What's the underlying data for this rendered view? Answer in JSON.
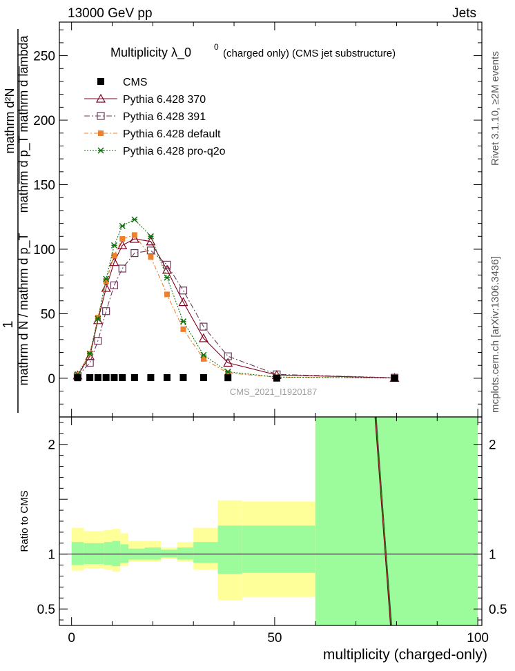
{
  "header": {
    "left": "13000 GeV pp",
    "right": "Jets"
  },
  "side_labels": {
    "rivet": "Rivet 3.1.10, ≥2M events",
    "mcplots": "mcplots.cern.ch [arXiv:1306.3436]"
  },
  "main_ylabel": {
    "numerator": "1",
    "den_upper": "mathrm d²N",
    "den_lower": "mathrm d p_T mathrm d lambda",
    "denom": "mathrm d N / mathrm d p_T"
  },
  "ratio_ylabel": "Ratio to CMS",
  "watermark": "CMS_2021_I1920187",
  "title_main": "Multiplicity  λ_0",
  "title_sup": "0",
  "title_sub": "(charged only) (CMS jet substructure)",
  "xlabel": "multiplicity (charged-only)",
  "colors": {
    "cms": "#000000",
    "p370": "#800020",
    "p391": "#6b3a5a",
    "pdef": "#f07f2a",
    "pq2o": "#107010",
    "band_inner": "#9cfc9c",
    "band_outer": "#ffff99"
  },
  "chart_data": [
    {
      "type": "line",
      "name": "main",
      "xlim": [
        -3,
        101
      ],
      "ylim": [
        -30,
        276
      ],
      "xticks": [
        0,
        50,
        100
      ],
      "yticks": [
        0,
        50,
        100,
        150,
        200,
        250
      ],
      "cms": {
        "name": "CMS",
        "x": [
          1.5,
          4.5,
          6.5,
          8.5,
          10.5,
          12.5,
          15.5,
          19.5,
          23.5,
          27.5,
          32.5,
          38.5,
          50.5,
          79.5
        ],
        "y": [
          0.4,
          0.5,
          0.5,
          0.5,
          0.5,
          0.5,
          0.5,
          0.5,
          0.5,
          0.5,
          0.5,
          0.4,
          0.1,
          0.05
        ]
      },
      "series": [
        {
          "name": "Pythia 6.428 370",
          "color_key": "p370",
          "marker": "triangle",
          "dash": "",
          "x": [
            1.5,
            4.5,
            6.5,
            8.5,
            10.5,
            12.5,
            15.5,
            19.5,
            23.5,
            27.5,
            32.5,
            38.5,
            50.5,
            79.5
          ],
          "y": [
            2.2,
            17,
            45,
            70,
            90,
            103,
            108,
            106,
            84,
            59,
            31,
            12,
            2.5,
            0.3
          ]
        },
        {
          "name": "Pythia 6.428 391",
          "color_key": "p391",
          "marker": "square_open",
          "dash": "8,3,2,3",
          "x": [
            1.5,
            4.5,
            6.5,
            8.5,
            10.5,
            12.5,
            15.5,
            19.5,
            23.5,
            27.5,
            32.5,
            38.5,
            50.5,
            79.5
          ],
          "y": [
            1.5,
            12,
            29,
            52,
            72,
            85,
            97,
            99,
            88,
            68,
            40,
            17,
            3,
            0.4
          ]
        },
        {
          "name": "Pythia 6.428 default",
          "color_key": "pdef",
          "marker": "square_filled",
          "dash": "6,3,2,3",
          "x": [
            1.5,
            4.5,
            6.5,
            8.5,
            10.5,
            12.5,
            15.5,
            19.5,
            23.5,
            27.5,
            32.5,
            38.5,
            50.5,
            79.5
          ],
          "y": [
            2.8,
            19,
            47,
            75,
            95,
            108,
            111,
            94,
            65,
            38,
            15,
            4,
            0.8,
            0.1
          ]
        },
        {
          "name": "Pythia 6.428 pro-q2o",
          "color_key": "pq2o",
          "marker": "star",
          "dash": "2,2",
          "x": [
            1.5,
            4.5,
            6.5,
            8.5,
            10.5,
            12.5,
            15.5,
            19.5,
            23.5,
            27.5,
            32.5,
            38.5,
            50.5,
            79.5
          ],
          "y": [
            3,
            19,
            46,
            77,
            103,
            118,
            123,
            110,
            78,
            44,
            18,
            5,
            0.9,
            0.1
          ]
        }
      ]
    },
    {
      "type": "area",
      "name": "ratio",
      "xlim": [
        -3,
        101
      ],
      "ylim": [
        0.35,
        2.25
      ],
      "yticks": [
        0.5,
        1,
        1.5,
        2
      ],
      "ytick_labels": [
        "0.5",
        "1",
        "",
        "2"
      ],
      "bins": [
        {
          "lo": 0,
          "hi": 3,
          "inner": [
            0.9,
            1.11
          ],
          "outer": [
            0.85,
            1.24
          ]
        },
        {
          "lo": 3,
          "hi": 6,
          "inner": [
            0.91,
            1.1
          ],
          "outer": [
            0.87,
            1.21
          ]
        },
        {
          "lo": 6,
          "hi": 8,
          "inner": [
            0.91,
            1.1
          ],
          "outer": [
            0.87,
            1.21
          ]
        },
        {
          "lo": 8,
          "hi": 10,
          "inner": [
            0.9,
            1.11
          ],
          "outer": [
            0.86,
            1.22
          ]
        },
        {
          "lo": 10,
          "hi": 12,
          "inner": [
            0.89,
            1.12
          ],
          "outer": [
            0.84,
            1.23
          ]
        },
        {
          "lo": 12,
          "hi": 14,
          "inner": [
            0.92,
            1.09
          ],
          "outer": [
            0.89,
            1.19
          ]
        },
        {
          "lo": 14,
          "hi": 18,
          "inner": [
            0.95,
            1.05
          ],
          "outer": [
            0.93,
            1.12
          ]
        },
        {
          "lo": 18,
          "hi": 22,
          "inner": [
            0.95,
            1.06
          ],
          "outer": [
            0.93,
            1.12
          ]
        },
        {
          "lo": 22,
          "hi": 26,
          "inner": [
            0.97,
            1.04
          ],
          "outer": [
            0.96,
            1.06
          ]
        },
        {
          "lo": 26,
          "hi": 30,
          "inner": [
            0.95,
            1.06
          ],
          "outer": [
            0.93,
            1.11
          ]
        },
        {
          "lo": 30,
          "hi": 36,
          "inner": [
            0.92,
            1.11
          ],
          "outer": [
            0.86,
            1.24
          ]
        },
        {
          "lo": 36,
          "hi": 42,
          "inner": [
            0.82,
            1.26
          ],
          "outer": [
            0.58,
            1.49
          ]
        },
        {
          "lo": 42,
          "hi": 60,
          "inner": [
            0.83,
            1.26
          ],
          "outer": [
            0.61,
            1.48
          ]
        },
        {
          "lo": 60,
          "hi": 100,
          "inner": [
            0.35,
            2.25
          ],
          "outer": [
            0.35,
            2.25
          ]
        }
      ],
      "ratio_lines": [
        {
          "color_key": "pdef",
          "x": [
            74.8,
            78.6
          ],
          "y": [
            2.25,
            0.35
          ]
        },
        {
          "color_key": "p391",
          "x": [
            75.0,
            78.7
          ],
          "y": [
            2.25,
            0.35
          ]
        },
        {
          "color_key": "pq2o",
          "x": [
            74.9,
            78.8
          ],
          "y": [
            2.25,
            0.35
          ]
        },
        {
          "color_key": "p370",
          "x": [
            74.7,
            78.5
          ],
          "y": [
            2.25,
            0.35
          ]
        }
      ]
    }
  ]
}
